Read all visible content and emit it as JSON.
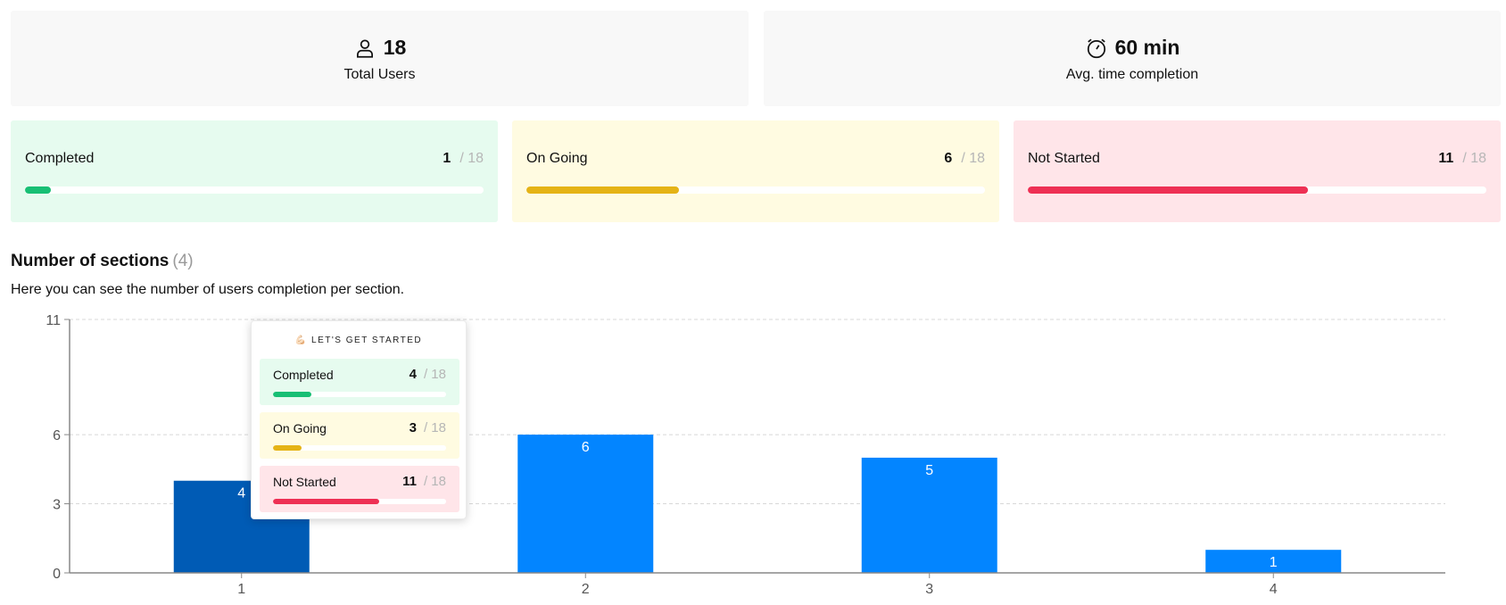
{
  "summary": {
    "users": {
      "value": "18",
      "label": "Total Users",
      "icon": "user-icon"
    },
    "time": {
      "value": "60 min",
      "label": "Avg. time completion",
      "icon": "stopwatch-icon"
    }
  },
  "progress": [
    {
      "key": "completed",
      "label": "Completed",
      "count": "1",
      "total": "/ 18",
      "fraction": 0.0556,
      "color": "#18bf74"
    },
    {
      "key": "ongoing",
      "label": "On Going",
      "count": "6",
      "total": "/ 18",
      "fraction": 0.3333,
      "color": "#e5b316"
    },
    {
      "key": "notstarted",
      "label": "Not Started",
      "count": "11",
      "total": "/ 18",
      "fraction": 0.6111,
      "color": "#ee3054"
    }
  ],
  "section": {
    "title": "Number of sections",
    "count": "(4)",
    "description": "Here you can see the number of users completion per section."
  },
  "tooltip": {
    "title": "💪🏻 LET'S GET STARTED",
    "rows": [
      {
        "key": "completed",
        "label": "Completed",
        "count": "4",
        "total": "/ 18",
        "fraction": 0.2222,
        "color": "#18bf74"
      },
      {
        "key": "ongoing",
        "label": "On Going",
        "count": "3",
        "total": "/ 18",
        "fraction": 0.1667,
        "color": "#e5b316"
      },
      {
        "key": "notstarted",
        "label": "Not Started",
        "count": "11",
        "total": "/ 18",
        "fraction": 0.6111,
        "color": "#ee3054"
      }
    ]
  },
  "chart_data": {
    "type": "bar",
    "categories": [
      "1",
      "2",
      "3",
      "4"
    ],
    "values": [
      4,
      6,
      5,
      1
    ],
    "yticks": [
      0,
      3,
      6,
      11
    ],
    "ylim": [
      0,
      11
    ],
    "grid": true,
    "highlighted_index": 0,
    "colors": {
      "bar": "#0385ff",
      "highlight": "#005bb5",
      "grid": "#d8d8d8",
      "axis": "#888888"
    }
  }
}
